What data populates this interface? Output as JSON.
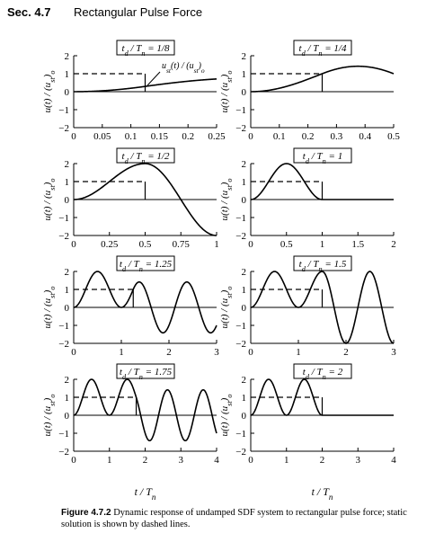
{
  "header": {
    "section": "Sec. 4.7",
    "title": "Rectangular Pulse Force"
  },
  "ylabel": "u(t) / (u_st)_o",
  "xlabel": "t / T_n",
  "annotation": "u_st(t) / (u_st)_o",
  "caption": {
    "label": "Figure 4.7.2",
    "text": "Dynamic response of undamped SDF system to rectangular pulse force; static solution is shown by dashed lines."
  },
  "chart_data": [
    {
      "type": "line",
      "title": "t_d / T_n = 1/8",
      "td": 0.125,
      "xlim": [
        0,
        0.25
      ],
      "xticks": [
        0,
        0.05,
        0.1,
        0.15,
        0.2,
        0.25
      ],
      "xtick_labels": [
        "0",
        "0.05",
        "0.1",
        "0.15",
        "0.2",
        "0.25"
      ],
      "ylim": [
        -2,
        2
      ],
      "yticks": [
        -2,
        -1,
        0,
        1,
        2
      ]
    },
    {
      "type": "line",
      "title": "t_d / T_n = 1/4",
      "td": 0.25,
      "xlim": [
        0,
        0.5
      ],
      "xticks": [
        0,
        0.1,
        0.2,
        0.3,
        0.4,
        0.5
      ],
      "xtick_labels": [
        "0",
        "0.1",
        "0.2",
        "0.3",
        "0.4",
        "0.5"
      ],
      "ylim": [
        -2,
        2
      ],
      "yticks": [
        -2,
        -1,
        0,
        1,
        2
      ]
    },
    {
      "type": "line",
      "title": "t_d / T_n = 1/2",
      "td": 0.5,
      "xlim": [
        0,
        1
      ],
      "xticks": [
        0,
        0.25,
        0.5,
        0.75,
        1
      ],
      "xtick_labels": [
        "0",
        "0.25",
        "0.5",
        "0.75",
        "1"
      ],
      "ylim": [
        -2,
        2
      ],
      "yticks": [
        -2,
        -1,
        0,
        1,
        2
      ]
    },
    {
      "type": "line",
      "title": "t_d / T_n = 1",
      "td": 1,
      "xlim": [
        0,
        2
      ],
      "xticks": [
        0,
        0.5,
        1,
        1.5,
        2
      ],
      "xtick_labels": [
        "0",
        "0.5",
        "1",
        "1.5",
        "2"
      ],
      "ylim": [
        -2,
        2
      ],
      "yticks": [
        -2,
        -1,
        0,
        1,
        2
      ]
    },
    {
      "type": "line",
      "title": "t_d / T_n = 1.25",
      "td": 1.25,
      "xlim": [
        0,
        3
      ],
      "xticks": [
        0,
        1,
        2,
        3
      ],
      "xtick_labels": [
        "0",
        "1",
        "2",
        "3"
      ],
      "ylim": [
        -2,
        2
      ],
      "yticks": [
        -2,
        -1,
        0,
        1,
        2
      ]
    },
    {
      "type": "line",
      "title": "t_d / T_n = 1.5",
      "td": 1.5,
      "xlim": [
        0,
        3
      ],
      "xticks": [
        0,
        1,
        2,
        3
      ],
      "xtick_labels": [
        "0",
        "1",
        "2",
        "3"
      ],
      "ylim": [
        -2,
        2
      ],
      "yticks": [
        -2,
        -1,
        0,
        1,
        2
      ]
    },
    {
      "type": "line",
      "title": "t_d / T_n = 1.75",
      "td": 1.75,
      "xlim": [
        0,
        4
      ],
      "xticks": [
        0,
        1,
        2,
        3,
        4
      ],
      "xtick_labels": [
        "0",
        "1",
        "2",
        "3",
        "4"
      ],
      "ylim": [
        -2,
        2
      ],
      "yticks": [
        -2,
        -1,
        0,
        1,
        2
      ]
    },
    {
      "type": "line",
      "title": "t_d / T_n = 2",
      "td": 2,
      "xlim": [
        0,
        4
      ],
      "xticks": [
        0,
        1,
        2,
        3,
        4
      ],
      "xtick_labels": [
        "0",
        "1",
        "2",
        "3",
        "4"
      ],
      "ylim": [
        -2,
        2
      ],
      "yticks": [
        -2,
        -1,
        0,
        1,
        2
      ]
    }
  ]
}
